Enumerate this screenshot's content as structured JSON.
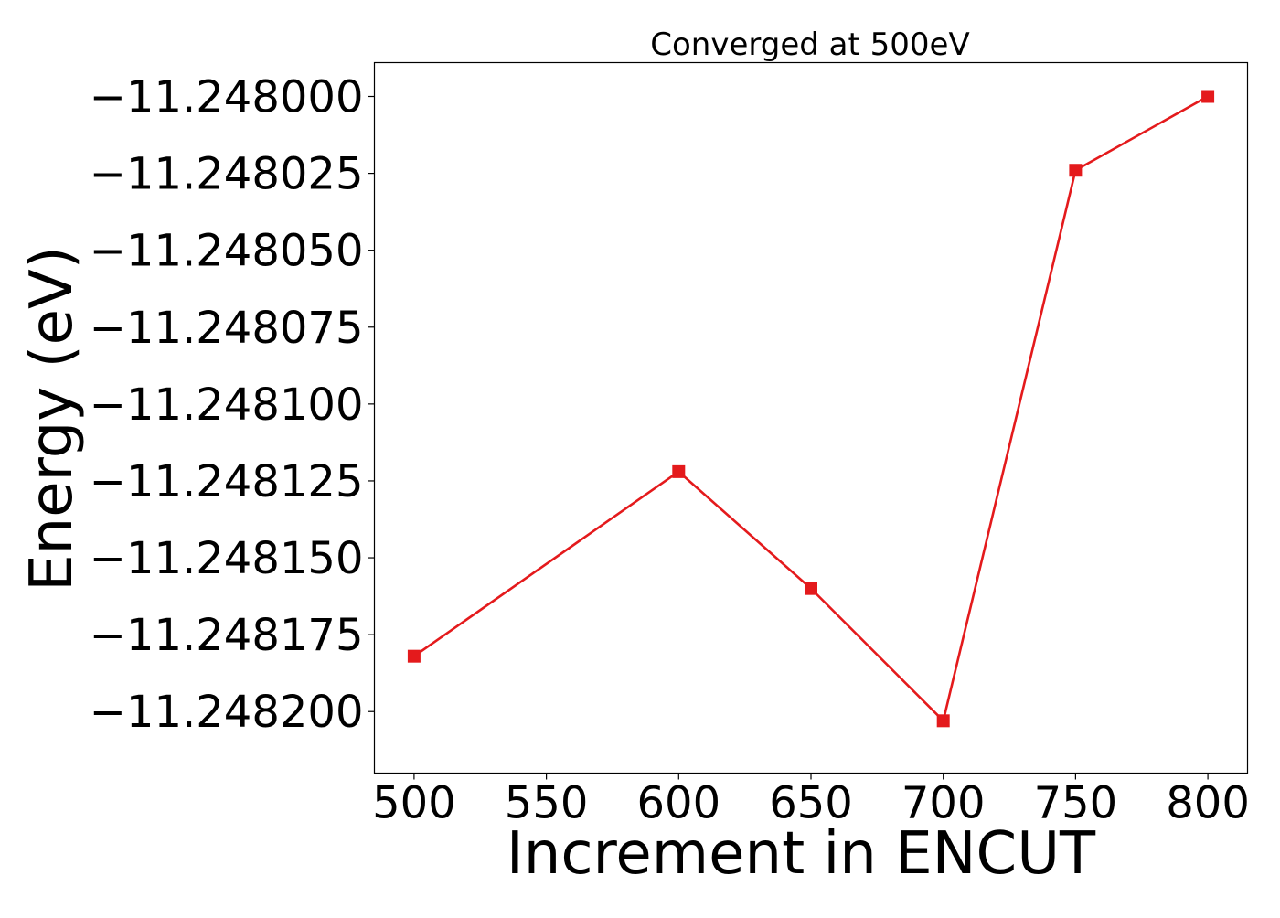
{
  "chart_data": {
    "type": "line",
    "title": "Converged at 500eV",
    "xlabel": "Increment in ENCUT",
    "ylabel": "Energy (eV)",
    "x": [
      500,
      600,
      650,
      700,
      750,
      800
    ],
    "series": [
      {
        "values": [
          -11.248182,
          -11.248122,
          -11.24816,
          -11.248203,
          -11.248024,
          -11.248
        ]
      }
    ],
    "xlim": [
      485,
      815
    ],
    "ylim": [
      -11.24822,
      -11.247989
    ],
    "xticks": [
      500,
      550,
      600,
      650,
      700,
      750,
      800
    ],
    "xtick_labels": [
      "500",
      "550",
      "600",
      "650",
      "700",
      "750",
      "800"
    ],
    "yticks": [
      -11.248,
      -11.248025,
      -11.24805,
      -11.248075,
      -11.2481,
      -11.248125,
      -11.24815,
      -11.248175,
      -11.2482
    ],
    "ytick_labels": [
      "−11.248000",
      "−11.248025",
      "−11.248050",
      "−11.248075",
      "−11.248100",
      "−11.248125",
      "−11.248150",
      "−11.248175",
      "−11.248200"
    ],
    "grid": false,
    "legend": "none",
    "marker": "square",
    "colors": {
      "line": "#e41a1c",
      "axes": "#000000"
    }
  }
}
